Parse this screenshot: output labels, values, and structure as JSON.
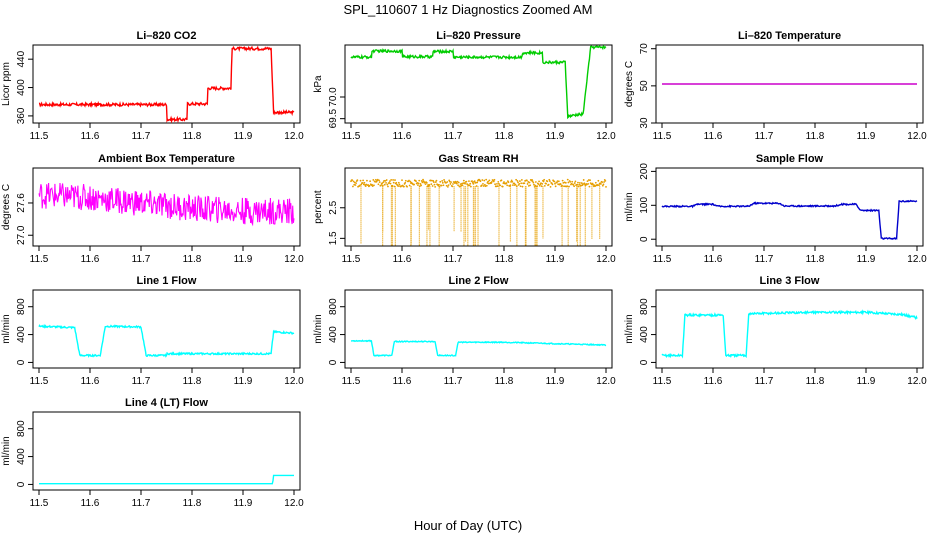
{
  "figure": {
    "title": "SPL_110607  1 Hz Diagnostics Zoomed AM",
    "xlabel": "Hour of Day (UTC)"
  },
  "chart_data": [
    {
      "type": "line",
      "title": "Li–820 CO2",
      "ylabel": "Licor ppm",
      "color": "#ff0000",
      "noise": 2,
      "xlim": [
        11.5,
        12.0
      ],
      "ylim": [
        350,
        460
      ],
      "yticks": [
        "360",
        "400",
        "440"
      ],
      "xticks": [
        "11.5",
        "11.6",
        "11.7",
        "11.8",
        "11.9",
        "12.0"
      ],
      "x": [
        11.5,
        11.75,
        11.751,
        11.79,
        11.791,
        11.83,
        11.831,
        11.877,
        11.878,
        11.955,
        11.96,
        12.0
      ],
      "y": [
        376,
        376,
        355,
        355,
        377,
        377,
        399,
        399,
        455,
        455,
        365,
        365
      ]
    },
    {
      "type": "line",
      "title": "Li–820 Pressure",
      "ylabel": "kPa",
      "color": "#00cc00",
      "noise": 0.03,
      "xlim": [
        11.5,
        12.0
      ],
      "ylim": [
        69.4,
        71.2
      ],
      "yticks": [
        "69.5",
        "70.0"
      ],
      "xticks": [
        "11.5",
        "11.6",
        "11.7",
        "11.8",
        "11.9",
        "12.0"
      ],
      "x": [
        11.5,
        11.54,
        11.541,
        11.6,
        11.601,
        11.66,
        11.661,
        11.7,
        11.701,
        11.835,
        11.836,
        11.875,
        11.876,
        11.92,
        11.925,
        11.95,
        11.955,
        11.97,
        11.975,
        12.0
      ],
      "y": [
        70.92,
        70.92,
        71.06,
        71.06,
        70.93,
        70.93,
        71.05,
        71.05,
        70.92,
        70.92,
        71.02,
        71.02,
        70.8,
        70.8,
        69.55,
        69.6,
        69.6,
        71.15,
        71.15,
        71.15
      ]
    },
    {
      "type": "line",
      "title": "Li–820 Temperature",
      "ylabel": "degrees C",
      "color": "#cc00cc",
      "noise": 0,
      "xlim": [
        11.5,
        12.0
      ],
      "ylim": [
        30,
        72
      ],
      "yticks": [
        "30",
        "50",
        "70"
      ],
      "xticks": [
        "11.5",
        "11.6",
        "11.7",
        "11.8",
        "11.9",
        "12.0"
      ],
      "x": [
        11.5,
        12.0
      ],
      "y": [
        51,
        51
      ]
    },
    {
      "type": "line",
      "title": "Ambient Box Temperature",
      "ylabel": "degrees C",
      "color": "#ff00ff",
      "noise": 0.25,
      "xlim": [
        11.5,
        12.0
      ],
      "ylim": [
        26.8,
        28.25
      ],
      "yticks": [
        "27.0",
        "27.6"
      ],
      "xticks": [
        "11.5",
        "11.6",
        "11.7",
        "11.8",
        "11.9",
        "12.0"
      ],
      "x": [
        11.5,
        11.6,
        11.7,
        11.8,
        11.9,
        12.0
      ],
      "y": [
        27.75,
        27.7,
        27.6,
        27.5,
        27.45,
        27.45
      ]
    },
    {
      "type": "scatter",
      "title": "Gas Stream RH",
      "ylabel": "percent",
      "color": "#e69f00",
      "noise": 0.12,
      "xlim": [
        11.5,
        12.0
      ],
      "ylim": [
        1.25,
        3.8
      ],
      "yticks": [
        "1.5",
        "2.5"
      ],
      "xticks": [
        "11.5",
        "11.6",
        "11.7",
        "11.8",
        "11.9",
        "12.0"
      ],
      "x": [
        11.5,
        11.6,
        11.7,
        11.8,
        11.9,
        12.0
      ],
      "y": [
        3.3,
        3.3,
        3.3,
        3.3,
        3.3,
        3.3
      ]
    },
    {
      "type": "line",
      "title": "Sample Flow",
      "ylabel": "ml/min",
      "color": "#0000cc",
      "noise": 2,
      "xlim": [
        11.5,
        12.0
      ],
      "ylim": [
        -20,
        210
      ],
      "yticks": [
        "0",
        "100",
        "200"
      ],
      "xticks": [
        "11.5",
        "11.6",
        "11.7",
        "11.8",
        "11.9",
        "12.0"
      ],
      "x": [
        11.5,
        11.56,
        11.57,
        11.6,
        11.61,
        11.67,
        11.68,
        11.73,
        11.74,
        11.84,
        11.85,
        11.88,
        11.89,
        11.925,
        11.93,
        11.96,
        11.965,
        12.0
      ],
      "y": [
        97,
        97,
        103,
        103,
        97,
        97,
        106,
        106,
        98,
        98,
        103,
        103,
        85,
        85,
        2,
        2,
        112,
        112
      ]
    },
    {
      "type": "line",
      "title": "Line 1 Flow",
      "ylabel": "ml/min",
      "color": "#00ffff",
      "noise": 12,
      "xlim": [
        11.5,
        12.0
      ],
      "ylim": [
        -80,
        1040
      ],
      "yticks": [
        "0",
        "400",
        "800"
      ],
      "xticks": [
        "11.5",
        "11.6",
        "11.7",
        "11.8",
        "11.9",
        "12.0"
      ],
      "x": [
        11.5,
        11.57,
        11.58,
        11.62,
        11.63,
        11.7,
        11.71,
        11.75,
        11.751,
        11.955,
        11.96,
        12.0
      ],
      "y": [
        520,
        500,
        100,
        100,
        520,
        510,
        100,
        100,
        125,
        125,
        440,
        420
      ]
    },
    {
      "type": "line",
      "title": "Line 2 Flow",
      "ylabel": "ml/min",
      "color": "#00ffff",
      "noise": 7,
      "xlim": [
        11.5,
        12.0
      ],
      "ylim": [
        -80,
        1040
      ],
      "yticks": [
        "0",
        "400",
        "800"
      ],
      "xticks": [
        "11.5",
        "11.6",
        "11.7",
        "11.8",
        "11.9",
        "12.0"
      ],
      "x": [
        11.5,
        11.54,
        11.545,
        11.58,
        11.585,
        11.665,
        11.67,
        11.705,
        11.71,
        11.8,
        11.9,
        12.0
      ],
      "y": [
        310,
        310,
        100,
        100,
        300,
        300,
        100,
        100,
        290,
        290,
        270,
        250
      ]
    },
    {
      "type": "line",
      "title": "Line 3 Flow",
      "ylabel": "ml/min",
      "color": "#00ffff",
      "noise": 15,
      "xlim": [
        11.5,
        12.0
      ],
      "ylim": [
        -80,
        1040
      ],
      "yticks": [
        "0",
        "400",
        "800"
      ],
      "xticks": [
        "11.5",
        "11.6",
        "11.7",
        "11.8",
        "11.9",
        "12.0"
      ],
      "x": [
        11.5,
        11.54,
        11.545,
        11.62,
        11.625,
        11.665,
        11.67,
        11.8,
        11.9,
        11.97,
        12.0
      ],
      "y": [
        100,
        100,
        680,
        680,
        100,
        100,
        700,
        720,
        720,
        690,
        640
      ]
    },
    {
      "type": "line",
      "title": "Line 4 (LT) Flow",
      "ylabel": "ml/min",
      "color": "#00ffff",
      "noise": 0,
      "xlim": [
        11.5,
        12.0
      ],
      "ylim": [
        -80,
        1040
      ],
      "yticks": [
        "0",
        "400",
        "800"
      ],
      "xticks": [
        "11.5",
        "11.6",
        "11.7",
        "11.8",
        "11.9",
        "12.0"
      ],
      "x": [
        11.5,
        11.958,
        11.96,
        12.0
      ],
      "y": [
        10,
        10,
        130,
        130
      ]
    }
  ]
}
